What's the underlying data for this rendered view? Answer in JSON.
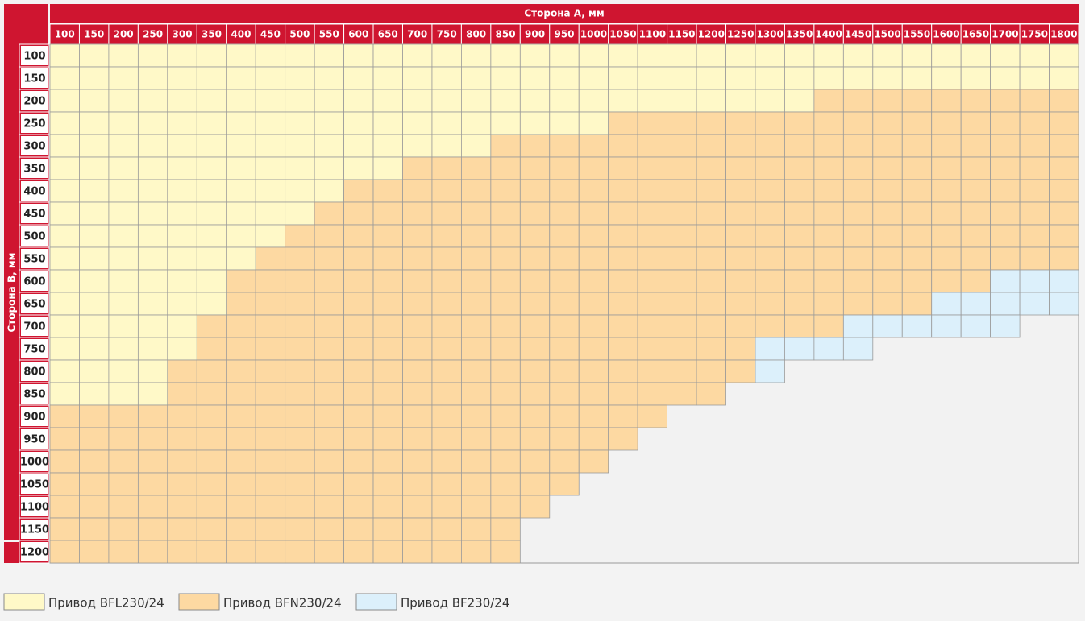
{
  "table": {
    "title": "Сторона A, мм",
    "row_title": "Сторона B, мм",
    "columns": [
      100,
      150,
      200,
      250,
      300,
      350,
      400,
      450,
      500,
      550,
      600,
      650,
      700,
      750,
      800,
      850,
      900,
      950,
      1000,
      1050,
      1100,
      1150,
      1200,
      1250,
      1300,
      1350,
      1400,
      1450,
      1500,
      1550,
      1600,
      1650,
      1700,
      1750,
      1800
    ],
    "rows": [
      {
        "label": 100,
        "cells": [
          0,
          0,
          0,
          0,
          0,
          0,
          0,
          0,
          0,
          0,
          0,
          0,
          0,
          0,
          0,
          0,
          0,
          0,
          0,
          0,
          0,
          0,
          0,
          0,
          0,
          0,
          0,
          0,
          0,
          0,
          0,
          0,
          0,
          0,
          0
        ]
      },
      {
        "label": 150,
        "cells": [
          0,
          0,
          0,
          0,
          0,
          0,
          0,
          0,
          0,
          0,
          0,
          0,
          0,
          0,
          0,
          0,
          0,
          0,
          0,
          0,
          0,
          0,
          0,
          0,
          0,
          0,
          0,
          0,
          0,
          0,
          0,
          0,
          0,
          0,
          0
        ]
      },
      {
        "label": 200,
        "cells": [
          0,
          0,
          0,
          0,
          0,
          0,
          0,
          0,
          0,
          0,
          0,
          0,
          0,
          0,
          0,
          0,
          0,
          0,
          0,
          0,
          0,
          0,
          0,
          0,
          0,
          0,
          1,
          1,
          1,
          1,
          1,
          1,
          1,
          1,
          1
        ]
      },
      {
        "label": 250,
        "cells": [
          0,
          0,
          0,
          0,
          0,
          0,
          0,
          0,
          0,
          0,
          0,
          0,
          0,
          0,
          0,
          0,
          0,
          0,
          0,
          1,
          1,
          1,
          1,
          1,
          1,
          1,
          1,
          1,
          1,
          1,
          1,
          1,
          1,
          1,
          1
        ]
      },
      {
        "label": 300,
        "cells": [
          0,
          0,
          0,
          0,
          0,
          0,
          0,
          0,
          0,
          0,
          0,
          0,
          0,
          0,
          0,
          1,
          1,
          1,
          1,
          1,
          1,
          1,
          1,
          1,
          1,
          1,
          1,
          1,
          1,
          1,
          1,
          1,
          1,
          1,
          1
        ]
      },
      {
        "label": 350,
        "cells": [
          0,
          0,
          0,
          0,
          0,
          0,
          0,
          0,
          0,
          0,
          0,
          0,
          1,
          1,
          1,
          1,
          1,
          1,
          1,
          1,
          1,
          1,
          1,
          1,
          1,
          1,
          1,
          1,
          1,
          1,
          1,
          1,
          1,
          1,
          1
        ]
      },
      {
        "label": 400,
        "cells": [
          0,
          0,
          0,
          0,
          0,
          0,
          0,
          0,
          0,
          0,
          1,
          1,
          1,
          1,
          1,
          1,
          1,
          1,
          1,
          1,
          1,
          1,
          1,
          1,
          1,
          1,
          1,
          1,
          1,
          1,
          1,
          1,
          1,
          1,
          1
        ]
      },
      {
        "label": 450,
        "cells": [
          0,
          0,
          0,
          0,
          0,
          0,
          0,
          0,
          0,
          1,
          1,
          1,
          1,
          1,
          1,
          1,
          1,
          1,
          1,
          1,
          1,
          1,
          1,
          1,
          1,
          1,
          1,
          1,
          1,
          1,
          1,
          1,
          1,
          1,
          1
        ]
      },
      {
        "label": 500,
        "cells": [
          0,
          0,
          0,
          0,
          0,
          0,
          0,
          0,
          1,
          1,
          1,
          1,
          1,
          1,
          1,
          1,
          1,
          1,
          1,
          1,
          1,
          1,
          1,
          1,
          1,
          1,
          1,
          1,
          1,
          1,
          1,
          1,
          1,
          1,
          1
        ]
      },
      {
        "label": 550,
        "cells": [
          0,
          0,
          0,
          0,
          0,
          0,
          0,
          1,
          1,
          1,
          1,
          1,
          1,
          1,
          1,
          1,
          1,
          1,
          1,
          1,
          1,
          1,
          1,
          1,
          1,
          1,
          1,
          1,
          1,
          1,
          1,
          1,
          1,
          1,
          1
        ]
      },
      {
        "label": 600,
        "cells": [
          0,
          0,
          0,
          0,
          0,
          0,
          1,
          1,
          1,
          1,
          1,
          1,
          1,
          1,
          1,
          1,
          1,
          1,
          1,
          1,
          1,
          1,
          1,
          1,
          1,
          1,
          1,
          1,
          1,
          1,
          1,
          1,
          2,
          2,
          2
        ]
      },
      {
        "label": 650,
        "cells": [
          0,
          0,
          0,
          0,
          0,
          0,
          1,
          1,
          1,
          1,
          1,
          1,
          1,
          1,
          1,
          1,
          1,
          1,
          1,
          1,
          1,
          1,
          1,
          1,
          1,
          1,
          1,
          1,
          1,
          1,
          2,
          2,
          2,
          2,
          2
        ]
      },
      {
        "label": 700,
        "cells": [
          0,
          0,
          0,
          0,
          0,
          1,
          1,
          1,
          1,
          1,
          1,
          1,
          1,
          1,
          1,
          1,
          1,
          1,
          1,
          1,
          1,
          1,
          1,
          1,
          1,
          1,
          1,
          2,
          2,
          2,
          2,
          2,
          2,
          null,
          null
        ]
      },
      {
        "label": 750,
        "cells": [
          0,
          0,
          0,
          0,
          0,
          1,
          1,
          1,
          1,
          1,
          1,
          1,
          1,
          1,
          1,
          1,
          1,
          1,
          1,
          1,
          1,
          1,
          1,
          1,
          2,
          2,
          2,
          2,
          null,
          null,
          null,
          null,
          null,
          null,
          null
        ]
      },
      {
        "label": 800,
        "cells": [
          0,
          0,
          0,
          0,
          1,
          1,
          1,
          1,
          1,
          1,
          1,
          1,
          1,
          1,
          1,
          1,
          1,
          1,
          1,
          1,
          1,
          1,
          1,
          1,
          2,
          null,
          null,
          null,
          null,
          null,
          null,
          null,
          null,
          null,
          null
        ]
      },
      {
        "label": 850,
        "cells": [
          0,
          0,
          0,
          0,
          1,
          1,
          1,
          1,
          1,
          1,
          1,
          1,
          1,
          1,
          1,
          1,
          1,
          1,
          1,
          1,
          1,
          1,
          1,
          null,
          null,
          null,
          null,
          null,
          null,
          null,
          null,
          null,
          null,
          null,
          null
        ]
      },
      {
        "label": 900,
        "cells": [
          1,
          1,
          1,
          1,
          1,
          1,
          1,
          1,
          1,
          1,
          1,
          1,
          1,
          1,
          1,
          1,
          1,
          1,
          1,
          1,
          1,
          null,
          null,
          null,
          null,
          null,
          null,
          null,
          null,
          null,
          null,
          null,
          null,
          null,
          null
        ]
      },
      {
        "label": 950,
        "cells": [
          1,
          1,
          1,
          1,
          1,
          1,
          1,
          1,
          1,
          1,
          1,
          1,
          1,
          1,
          1,
          1,
          1,
          1,
          1,
          1,
          null,
          null,
          null,
          null,
          null,
          null,
          null,
          null,
          null,
          null,
          null,
          null,
          null,
          null,
          null
        ]
      },
      {
        "label": 1000,
        "cells": [
          1,
          1,
          1,
          1,
          1,
          1,
          1,
          1,
          1,
          1,
          1,
          1,
          1,
          1,
          1,
          1,
          1,
          1,
          1,
          null,
          null,
          null,
          null,
          null,
          null,
          null,
          null,
          null,
          null,
          null,
          null,
          null,
          null,
          null,
          null
        ]
      },
      {
        "label": 1050,
        "cells": [
          1,
          1,
          1,
          1,
          1,
          1,
          1,
          1,
          1,
          1,
          1,
          1,
          1,
          1,
          1,
          1,
          1,
          1,
          null,
          null,
          null,
          null,
          null,
          null,
          null,
          null,
          null,
          null,
          null,
          null,
          null,
          null,
          null,
          null,
          null
        ]
      },
      {
        "label": 1100,
        "cells": [
          1,
          1,
          1,
          1,
          1,
          1,
          1,
          1,
          1,
          1,
          1,
          1,
          1,
          1,
          1,
          1,
          1,
          null,
          null,
          null,
          null,
          null,
          null,
          null,
          null,
          null,
          null,
          null,
          null,
          null,
          null,
          null,
          null,
          null,
          null
        ]
      },
      {
        "label": 1150,
        "cells": [
          1,
          1,
          1,
          1,
          1,
          1,
          1,
          1,
          1,
          1,
          1,
          1,
          1,
          1,
          1,
          1,
          null,
          null,
          null,
          null,
          null,
          null,
          null,
          null,
          null,
          null,
          null,
          null,
          null,
          null,
          null,
          null,
          null,
          null,
          null
        ]
      },
      {
        "label": 1200,
        "cells": [
          1,
          1,
          1,
          1,
          1,
          1,
          1,
          1,
          1,
          1,
          1,
          1,
          1,
          1,
          1,
          1,
          null,
          null,
          null,
          null,
          null,
          null,
          null,
          null,
          null,
          null,
          null,
          null,
          null,
          null,
          null,
          null,
          null,
          null,
          null
        ]
      }
    ]
  },
  "legend": [
    {
      "label": "Привод BFL230/24",
      "color": "#fff9c8"
    },
    {
      "label": "Привод BFN230/24",
      "color": "#fdd9a2"
    },
    {
      "label": "Привод BF230/24",
      "color": "#dcf0fb"
    }
  ]
}
